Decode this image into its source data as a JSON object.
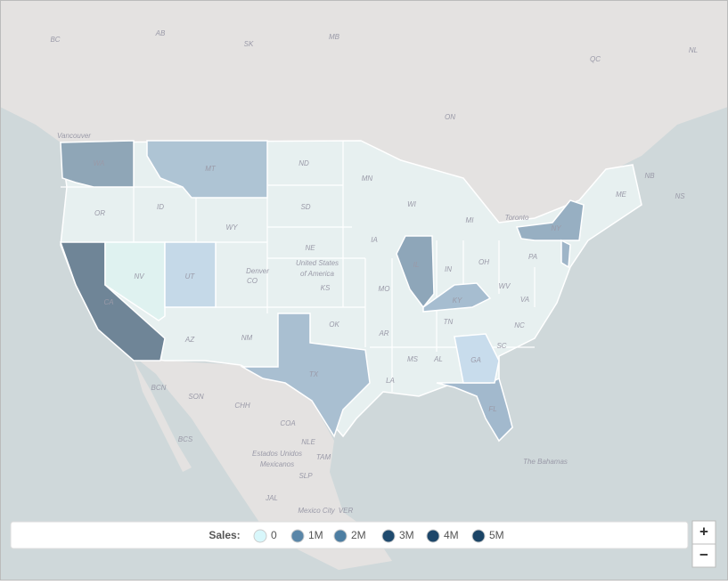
{
  "map_labels": [
    "BC",
    "AB",
    "SK",
    "MB",
    "ON",
    "QC",
    "NL",
    "NB",
    "NS",
    "Vancouver",
    "Toronto",
    "United States",
    "of America",
    "Denver",
    "CO",
    "WA",
    "OR",
    "ID",
    "MT",
    "WY",
    "ND",
    "SD",
    "NE",
    "KS",
    "OK",
    "TX",
    "MN",
    "IA",
    "MO",
    "AR",
    "LA",
    "WI",
    "IL",
    "MI",
    "IN",
    "OH",
    "KY",
    "TN",
    "MS",
    "AL",
    "GA",
    "FL",
    "SC",
    "NC",
    "VA",
    "WV",
    "PA",
    "NY",
    "ME",
    "NV",
    "UT",
    "AZ",
    "NM",
    "CA",
    "BCN",
    "SON",
    "CHH",
    "COA",
    "NLE",
    "TAM",
    "BCS",
    "SLP",
    "JAL",
    "VER",
    "Estados Unidos",
    "Mexicanos",
    "Mexico City",
    "The Bahamas"
  ],
  "legend": {
    "title": "Sales:",
    "items": [
      {
        "label": "0",
        "color": "#d8f7fb"
      },
      {
        "label": "1M",
        "color": "#5a86a8"
      },
      {
        "label": "2M",
        "color": "#4d7ea2"
      },
      {
        "label": "3M",
        "color": "#1f4a6e"
      },
      {
        "label": "4M",
        "color": "#1d4669"
      },
      {
        "label": "5M",
        "color": "#1b4466"
      }
    ]
  },
  "zoom": {
    "zoom_in": "+",
    "zoom_out": "−"
  }
}
